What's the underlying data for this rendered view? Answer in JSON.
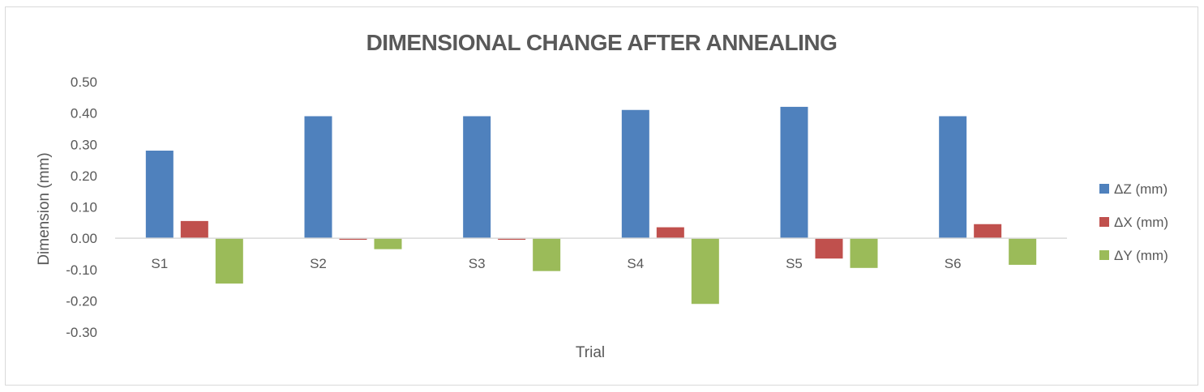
{
  "chart_data": {
    "type": "bar",
    "title": "DIMENSIONAL CHANGE AFTER ANNEALING",
    "xlabel": "Trial",
    "ylabel": "Dimension (mm)",
    "categories": [
      "S1",
      "S2",
      "S3",
      "S4",
      "S5",
      "S6"
    ],
    "ylim": [
      -0.3,
      0.5
    ],
    "yticks": [
      "0.50",
      "0.40",
      "0.30",
      "0.20",
      "0.10",
      "0.00",
      "-0.10",
      "-0.20",
      "-0.30"
    ],
    "grid": false,
    "legend": "right",
    "series": [
      {
        "name": "ΔZ (mm)",
        "color": "#4f81bd",
        "values": [
          0.28,
          0.39,
          0.39,
          0.41,
          0.42,
          0.39
        ]
      },
      {
        "name": "ΔX (mm)",
        "color": "#c0504d",
        "values": [
          0.055,
          -0.005,
          -0.005,
          0.035,
          -0.065,
          0.045
        ]
      },
      {
        "name": "ΔY (mm)",
        "color": "#9bbb59",
        "values": [
          -0.145,
          -0.035,
          -0.105,
          -0.21,
          -0.095,
          -0.085
        ]
      }
    ]
  }
}
